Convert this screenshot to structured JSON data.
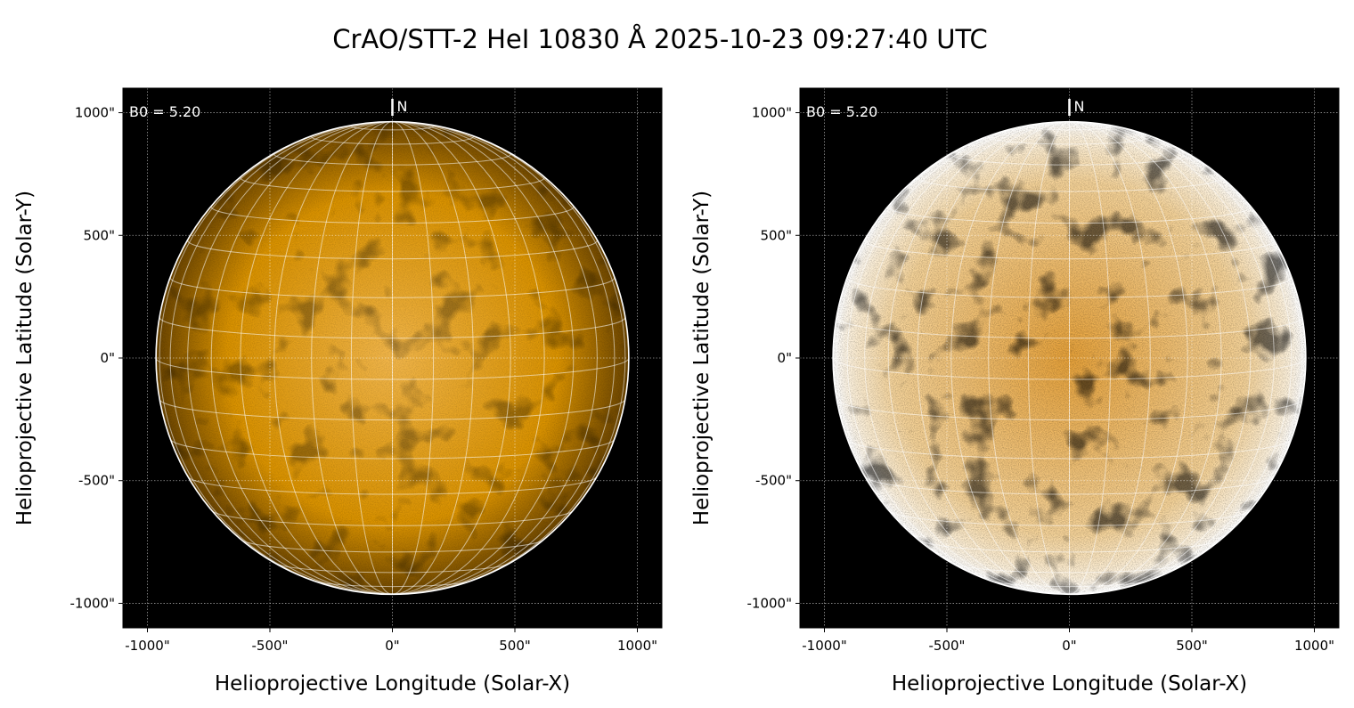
{
  "chart_data": {
    "type": "heatmap",
    "title": "CrAO/STT-2 HeI 10830 Å 2025-10-23 09:27:40 UTC",
    "xlabel": "Helioprojective Longitude (Solar-X)",
    "ylabel": "Helioprojective Latitude (Solar-Y)",
    "xlim": [
      -1100,
      1100
    ],
    "ylim": [
      -1100,
      1100
    ],
    "xticks": [
      -1000,
      -500,
      0,
      500,
      1000
    ],
    "yticks": [
      -1000,
      -500,
      0,
      500,
      1000
    ],
    "xtick_labels": [
      "-1000\"",
      "-500\"",
      "0\"",
      "500\"",
      "1000\""
    ],
    "ytick_labels": [
      "-1000\"",
      "-500\"",
      "0\"",
      "500\"",
      "1000\""
    ],
    "solar_radius_arcsec": 965,
    "b0_deg": 5.2,
    "grid_spacing_deg": 10,
    "grid": true,
    "panels": [
      {
        "name": "left",
        "annotation": "B0 = 5.20",
        "north_label": "N",
        "contrast": "normal"
      },
      {
        "name": "right",
        "annotation": "B0 = 5.20",
        "north_label": "N",
        "contrast": "enhanced"
      }
    ],
    "colors": {
      "disk_center": "#f2b64a",
      "disk_mid": "#d99200",
      "disk_limb": "#6a4400",
      "background": "#000000"
    }
  }
}
